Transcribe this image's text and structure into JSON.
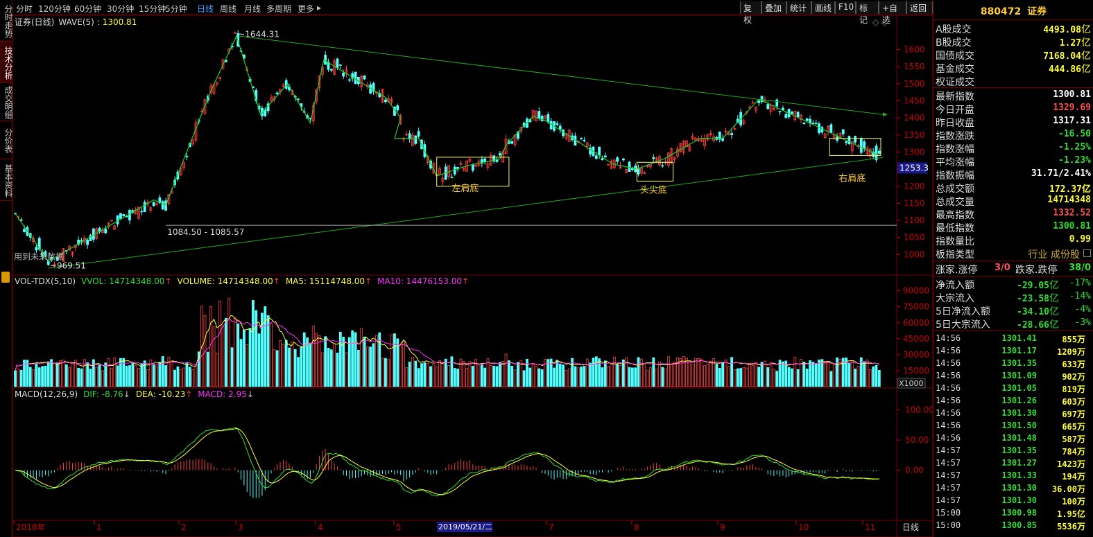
{
  "left_tabs": [
    {
      "label": "分时走势",
      "active": false
    },
    {
      "label": "技术分析",
      "active": true
    },
    {
      "label": "成交明细",
      "active": false
    },
    {
      "label": "分价表",
      "active": false
    },
    {
      "label": "基本资料",
      "active": false
    }
  ],
  "periods": [
    {
      "label": "分时",
      "active": false
    },
    {
      "label": "120分钟",
      "active": false
    },
    {
      "label": "60分钟",
      "active": false
    },
    {
      "label": "30分钟",
      "active": false
    },
    {
      "label": "15分钟",
      "active": false
    },
    {
      "label": "5分钟",
      "active": false
    },
    {
      "label": "日线",
      "active": true
    },
    {
      "label": "周线",
      "active": false
    },
    {
      "label": "月线",
      "active": false
    },
    {
      "label": "多周期",
      "active": false
    },
    {
      "label": "更多",
      "active": false
    }
  ],
  "more_arrow": "▸",
  "tools": [
    "复权",
    "叠加",
    "统计",
    "画线",
    "F10",
    "标记",
    "+自选",
    "返回"
  ],
  "chart_data": [
    {
      "type": "candlestick",
      "title": "证券(日线)",
      "indicator": "WAVE(5)",
      "indicator_value": "1300.81",
      "ylim": [
        950,
        1660
      ],
      "yticks": [
        1000,
        1050,
        1100,
        1150,
        1200,
        1250,
        1300,
        1350,
        1400,
        1450,
        1500,
        1550,
        1600
      ],
      "current_price_label": "1253.3",
      "x_ticks": [
        "2018年",
        "1",
        "2",
        "3",
        "4",
        "5",
        "6",
        "7",
        "8",
        "9",
        "10",
        "11"
      ],
      "cursor_date": "2019/05/21/二",
      "right_axis_label": "日线",
      "annotations": [
        {
          "text": "~1644.31",
          "y": 1644.31
        },
        {
          "text": "~969.51",
          "y": 969.51
        },
        {
          "text": "1084.50 - 1085.57",
          "y": 1085.57
        },
        {
          "text": "左肩底"
        },
        {
          "text": "头尖底"
        },
        {
          "text": "右肩底"
        },
        {
          "text": "用到未来数据"
        }
      ],
      "wave_points": [
        [
          0,
          1120
        ],
        [
          22,
          980
        ],
        [
          92,
          1160
        ],
        [
          100,
          1145
        ],
        [
          130,
          1480
        ],
        [
          147,
          1640
        ],
        [
          163,
          1410
        ],
        [
          181,
          1500
        ],
        [
          196,
          1385
        ],
        [
          205,
          1570
        ],
        [
          246,
          1460
        ],
        [
          256,
          1400
        ],
        [
          252,
          1340
        ],
        [
          268,
          1340
        ],
        [
          280,
          1230
        ],
        [
          300,
          1260
        ],
        [
          322,
          1280
        ],
        [
          326,
          1320
        ],
        [
          344,
          1405
        ],
        [
          353,
          1390
        ],
        [
          397,
          1265
        ],
        [
          413,
          1250
        ],
        [
          431,
          1280
        ],
        [
          455,
          1340
        ],
        [
          470,
          1340
        ],
        [
          494,
          1455
        ],
        [
          523,
          1395
        ],
        [
          559,
          1320
        ],
        [
          574,
          1290
        ]
      ]
    },
    {
      "type": "bar",
      "title": "VOL-TDX(5,10)",
      "legend": [
        {
          "name": "VVOL",
          "value": "14714348.00"
        },
        {
          "name": "VOLUME",
          "value": "14714348.00"
        },
        {
          "name": "MA5",
          "value": "15114748.00"
        },
        {
          "name": "MA10",
          "value": "14476153.00"
        }
      ],
      "ylim": [
        0,
        95000
      ],
      "yticks": [
        15000,
        30000,
        45000,
        60000,
        75000,
        90000
      ],
      "unit_label": "X1000"
    },
    {
      "type": "line",
      "title": "MACD(12,26,9)",
      "legend": [
        {
          "name": "DIF",
          "value": "-8.76"
        },
        {
          "name": "DEA",
          "value": "-10.23"
        },
        {
          "name": "MACD",
          "value": "2.95"
        }
      ],
      "ylim": [
        -80,
        125
      ],
      "yticks": [
        0,
        50,
        100
      ],
      "ytick_labels": [
        "0.00",
        "50.00",
        "100.00"
      ]
    }
  ],
  "panel": {
    "code": "880472",
    "name": "证券",
    "volumes": [
      {
        "label": "A股成交",
        "value": "4493.08",
        "unit": "亿"
      },
      {
        "label": "B股成交",
        "value": "1.27",
        "unit": "亿"
      },
      {
        "label": "国债成交",
        "value": "7168.04",
        "unit": "亿"
      },
      {
        "label": "基金成交",
        "value": "444.86",
        "unit": "亿"
      },
      {
        "label": "权证成交",
        "value": "",
        "unit": ""
      }
    ],
    "stats": [
      {
        "label": "最新指数",
        "value": "1300.81",
        "color": "#ffffff"
      },
      {
        "label": "今日开盘",
        "value": "1329.69",
        "color": "#ff5050"
      },
      {
        "label": "昨日收盘",
        "value": "1317.31",
        "color": "#ffffff"
      },
      {
        "label": "指数涨跌",
        "value": "-16.50",
        "color": "#33dd33"
      },
      {
        "label": "指数涨幅",
        "value": "-1.25%",
        "color": "#33dd33"
      },
      {
        "label": "平均涨幅",
        "value": "-1.23%",
        "color": "#33dd33"
      },
      {
        "label": "指数振幅",
        "value": "31.71/2.41%",
        "color": "#ffffff"
      },
      {
        "label": "总成交额",
        "value": "172.37亿",
        "color": "#ffff33"
      },
      {
        "label": "总成交量",
        "value": "14714348",
        "color": "#ffff33"
      },
      {
        "label": "最高指数",
        "value": "1332.52",
        "color": "#ff5050"
      },
      {
        "label": "最低指数",
        "value": "1300.81",
        "color": "#33dd33"
      },
      {
        "label": "指数量比",
        "value": "0.99",
        "color": "#ffff33"
      }
    ],
    "category_label": "板指类型",
    "category_value": "行业 成份股",
    "limit_up_label": "涨家.涨停",
    "limit_up_value": "3/0",
    "limit_down_label": "跌家.跌停",
    "limit_down_value": "38/0",
    "flows": [
      {
        "label": "净流入额",
        "value": "-29.05",
        "unit": "亿",
        "pct": "-17%"
      },
      {
        "label": "大宗流入",
        "value": "-23.58",
        "unit": "亿",
        "pct": "-14%"
      },
      {
        "label": "5日净流入额",
        "value": "-34.10",
        "unit": "亿",
        "pct": "-4%"
      },
      {
        "label": "5日大宗流入",
        "value": "-28.66",
        "unit": "亿",
        "pct": "-3%"
      }
    ],
    "ticks": [
      {
        "time": "14:56",
        "price": "1301.41",
        "vol": "855万"
      },
      {
        "time": "14:56",
        "price": "1301.17",
        "vol": "1209万"
      },
      {
        "time": "14:56",
        "price": "1301.35",
        "vol": "633万"
      },
      {
        "time": "14:56",
        "price": "1301.09",
        "vol": "902万"
      },
      {
        "time": "14:56",
        "price": "1301.05",
        "vol": "819万"
      },
      {
        "time": "14:56",
        "price": "1301.26",
        "vol": "603万"
      },
      {
        "time": "14:56",
        "price": "1301.30",
        "vol": "697万"
      },
      {
        "time": "14:56",
        "price": "1301.50",
        "vol": "665万"
      },
      {
        "time": "14:56",
        "price": "1301.48",
        "vol": "587万"
      },
      {
        "time": "14:57",
        "price": "1301.35",
        "vol": "784万"
      },
      {
        "time": "14:57",
        "price": "1301.27",
        "vol": "1423万"
      },
      {
        "time": "14:57",
        "price": "1301.33",
        "vol": "194万"
      },
      {
        "time": "14:57",
        "price": "1301.30",
        "vol": "36.00万"
      },
      {
        "time": "14:57",
        "price": "1301.30",
        "vol": "100万"
      },
      {
        "time": "15:00",
        "price": "1300.98",
        "vol": "1.95亿"
      },
      {
        "time": "15:00",
        "price": "1300.85",
        "vol": "5536万"
      }
    ]
  }
}
